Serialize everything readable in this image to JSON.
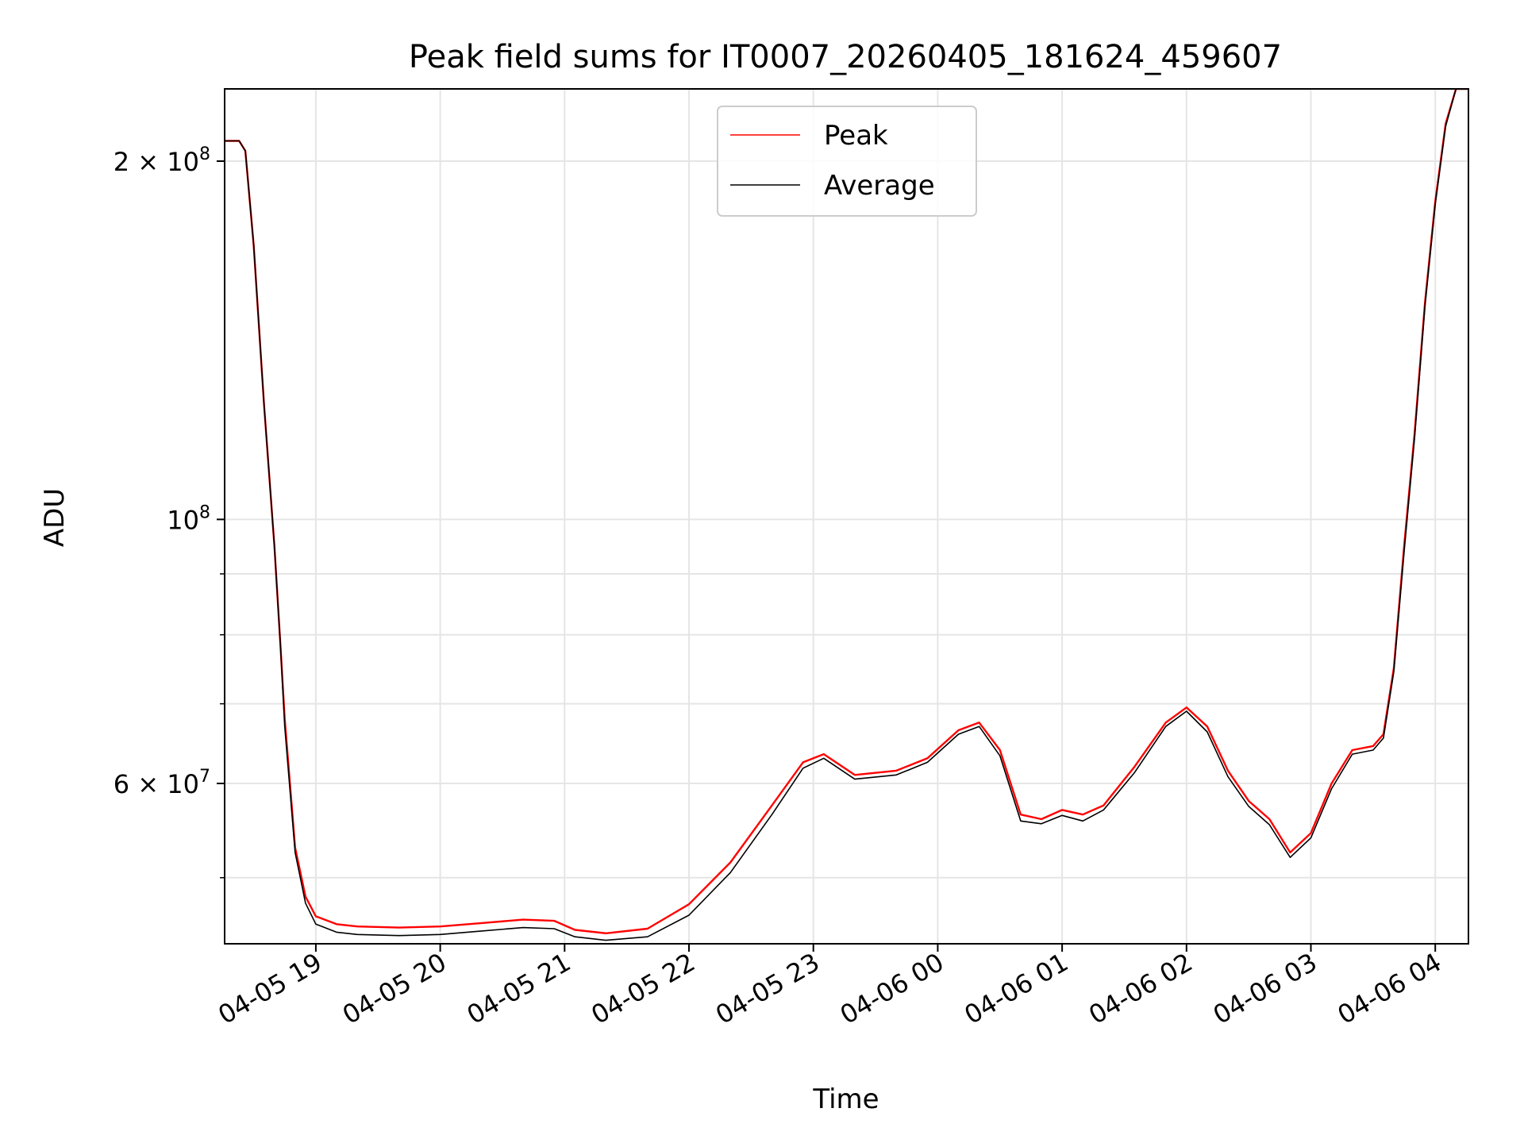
{
  "chart_data": {
    "type": "line",
    "title": "Peak field sums for IT0007_20260405_181624_459607",
    "xlabel": "Time",
    "ylabel": "ADU",
    "yscale": "log",
    "xlim": [
      "2026-04-05 18:16",
      "2026-04-06 04:16"
    ],
    "ylim": [
      44000000,
      230000000
    ],
    "grid": true,
    "legend": "top-center",
    "x_ticks": [
      "04-05 19",
      "04-05 20",
      "04-05 21",
      "04-05 22",
      "04-05 23",
      "04-06 00",
      "04-06 01",
      "04-06 02",
      "04-06 03",
      "04-06 04"
    ],
    "y_ticks": [
      {
        "value": 200000000,
        "mantissa": "2",
        "exponent": "8"
      },
      {
        "value": 100000000,
        "mantissa": "",
        "exponent": "8"
      },
      {
        "value": 60000000,
        "mantissa": "6",
        "exponent": "7"
      }
    ],
    "series": [
      {
        "name": "Peak",
        "color": "#ff0000",
        "x": [
          "2026-04-05 18:16",
          "2026-04-05 18:23",
          "2026-04-05 18:26",
          "2026-04-05 18:30",
          "2026-04-05 18:35",
          "2026-04-05 18:40",
          "2026-04-05 18:43",
          "2026-04-05 18:45",
          "2026-04-05 18:50",
          "2026-04-05 18:55",
          "2026-04-05 19:00",
          "2026-04-05 19:10",
          "2026-04-05 19:20",
          "2026-04-05 19:40",
          "2026-04-05 20:00",
          "2026-04-05 20:20",
          "2026-04-05 20:40",
          "2026-04-05 20:55",
          "2026-04-05 21:05",
          "2026-04-05 21:20",
          "2026-04-05 21:40",
          "2026-04-05 22:00",
          "2026-04-05 22:20",
          "2026-04-05 22:40",
          "2026-04-05 22:55",
          "2026-04-05 23:05",
          "2026-04-05 23:20",
          "2026-04-05 23:40",
          "2026-04-05 23:55",
          "2026-04-06 00:10",
          "2026-04-06 00:20",
          "2026-04-06 00:30",
          "2026-04-06 00:40",
          "2026-04-06 00:50",
          "2026-04-06 01:00",
          "2026-04-06 01:10",
          "2026-04-06 01:20",
          "2026-04-06 01:35",
          "2026-04-06 01:50",
          "2026-04-06 02:00",
          "2026-04-06 02:10",
          "2026-04-06 02:20",
          "2026-04-06 02:30",
          "2026-04-06 02:40",
          "2026-04-06 02:50",
          "2026-04-06 03:00",
          "2026-04-06 03:10",
          "2026-04-06 03:20",
          "2026-04-06 03:30",
          "2026-04-06 03:35",
          "2026-04-06 03:40",
          "2026-04-06 03:45",
          "2026-04-06 03:50",
          "2026-04-06 03:55",
          "2026-04-06 04:00",
          "2026-04-06 04:05",
          "2026-04-06 04:10",
          "2026-04-06 04:16"
        ],
        "values": [
          208000000,
          208000000,
          204000000,
          170000000,
          125000000,
          95000000,
          78000000,
          68000000,
          53000000,
          48200000,
          46400000,
          45700000,
          45500000,
          45400000,
          45500000,
          45800000,
          46100000,
          46000000,
          45200000,
          44900000,
          45300000,
          47500000,
          51500000,
          57500000,
          62500000,
          63500000,
          61000000,
          61500000,
          63000000,
          66500000,
          67500000,
          64000000,
          56500000,
          56000000,
          57000000,
          56500000,
          57500000,
          62000000,
          67500000,
          69500000,
          67000000,
          61500000,
          58000000,
          56000000,
          52500000,
          54500000,
          60000000,
          64000000,
          64500000,
          66000000,
          75000000,
          95000000,
          118000000,
          152000000,
          185000000,
          215000000,
          230000000,
          230000000
        ]
      },
      {
        "name": "Average",
        "color": "#000000",
        "x": [
          "2026-04-05 18:16",
          "2026-04-05 18:23",
          "2026-04-05 18:26",
          "2026-04-05 18:30",
          "2026-04-05 18:35",
          "2026-04-05 18:40",
          "2026-04-05 18:43",
          "2026-04-05 18:45",
          "2026-04-05 18:50",
          "2026-04-05 18:55",
          "2026-04-05 19:00",
          "2026-04-05 19:10",
          "2026-04-05 19:20",
          "2026-04-05 19:40",
          "2026-04-05 20:00",
          "2026-04-05 20:20",
          "2026-04-05 20:40",
          "2026-04-05 20:55",
          "2026-04-05 21:05",
          "2026-04-05 21:20",
          "2026-04-05 21:40",
          "2026-04-05 22:00",
          "2026-04-05 22:20",
          "2026-04-05 22:40",
          "2026-04-05 22:55",
          "2026-04-05 23:05",
          "2026-04-05 23:20",
          "2026-04-05 23:40",
          "2026-04-05 23:55",
          "2026-04-06 00:10",
          "2026-04-06 00:20",
          "2026-04-06 00:30",
          "2026-04-06 00:40",
          "2026-04-06 00:50",
          "2026-04-06 01:00",
          "2026-04-06 01:10",
          "2026-04-06 01:20",
          "2026-04-06 01:35",
          "2026-04-06 01:50",
          "2026-04-06 02:00",
          "2026-04-06 02:10",
          "2026-04-06 02:20",
          "2026-04-06 02:30",
          "2026-04-06 02:40",
          "2026-04-06 02:50",
          "2026-04-06 03:00",
          "2026-04-06 03:10",
          "2026-04-06 03:20",
          "2026-04-06 03:30",
          "2026-04-06 03:35",
          "2026-04-06 03:40",
          "2026-04-06 03:45",
          "2026-04-06 03:50",
          "2026-04-06 03:55",
          "2026-04-06 04:00",
          "2026-04-06 04:05",
          "2026-04-06 04:10",
          "2026-04-06 04:16"
        ],
        "values": [
          208000000,
          208000000,
          204000000,
          170000000,
          125000000,
          95000000,
          78000000,
          67000000,
          52500000,
          47600000,
          45700000,
          45000000,
          44800000,
          44700000,
          44800000,
          45100000,
          45400000,
          45300000,
          44600000,
          44300000,
          44600000,
          46500000,
          50500000,
          56500000,
          61800000,
          63000000,
          60500000,
          61000000,
          62500000,
          66000000,
          67000000,
          63300000,
          55800000,
          55500000,
          56400000,
          55800000,
          57000000,
          61300000,
          67000000,
          69000000,
          66300000,
          60800000,
          57400000,
          55400000,
          52000000,
          54000000,
          59400000,
          63500000,
          64000000,
          65500000,
          74500000,
          94000000,
          117000000,
          151000000,
          184000000,
          214000000,
          230000000,
          230000000
        ]
      }
    ]
  }
}
